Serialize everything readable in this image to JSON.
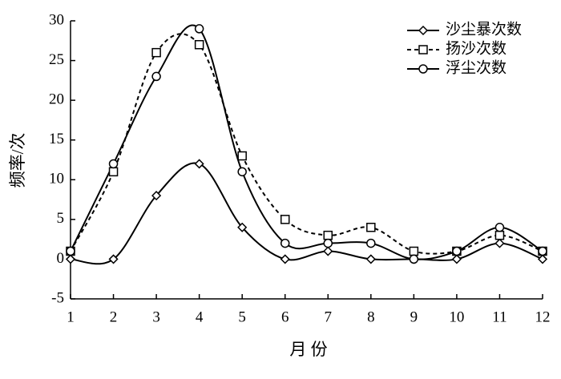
{
  "chart_data": {
    "type": "line",
    "xlabel": "月 份",
    "ylabel": "频率/次",
    "x": [
      1,
      2,
      3,
      4,
      5,
      6,
      7,
      8,
      9,
      10,
      11,
      12
    ],
    "series": [
      {
        "name": "沙尘暴次数",
        "color": "#000000",
        "line_style": "solid",
        "marker": "diamond",
        "values": [
          0,
          0,
          8,
          12,
          4,
          0,
          1,
          0,
          0,
          0,
          2,
          0
        ]
      },
      {
        "name": "扬沙次数",
        "color": "#000000",
        "line_style": "dashed",
        "marker": "square",
        "values": [
          1,
          11,
          26,
          27,
          13,
          5,
          3,
          4,
          1,
          1,
          3,
          1
        ]
      },
      {
        "name": "浮尘次数",
        "color": "#000000",
        "line_style": "solid",
        "marker": "circle",
        "values": [
          1,
          12,
          23,
          29,
          11,
          2,
          2,
          2,
          0,
          1,
          4,
          1
        ]
      }
    ],
    "xlim": [
      1,
      12
    ],
    "xticks": [
      1,
      2,
      3,
      4,
      5,
      6,
      7,
      8,
      9,
      10,
      11,
      12
    ],
    "ylim": [
      -5,
      30
    ],
    "yticks": [
      -5,
      0,
      5,
      10,
      15,
      20,
      25,
      30
    ],
    "legend": "upper-right",
    "grid": false
  }
}
